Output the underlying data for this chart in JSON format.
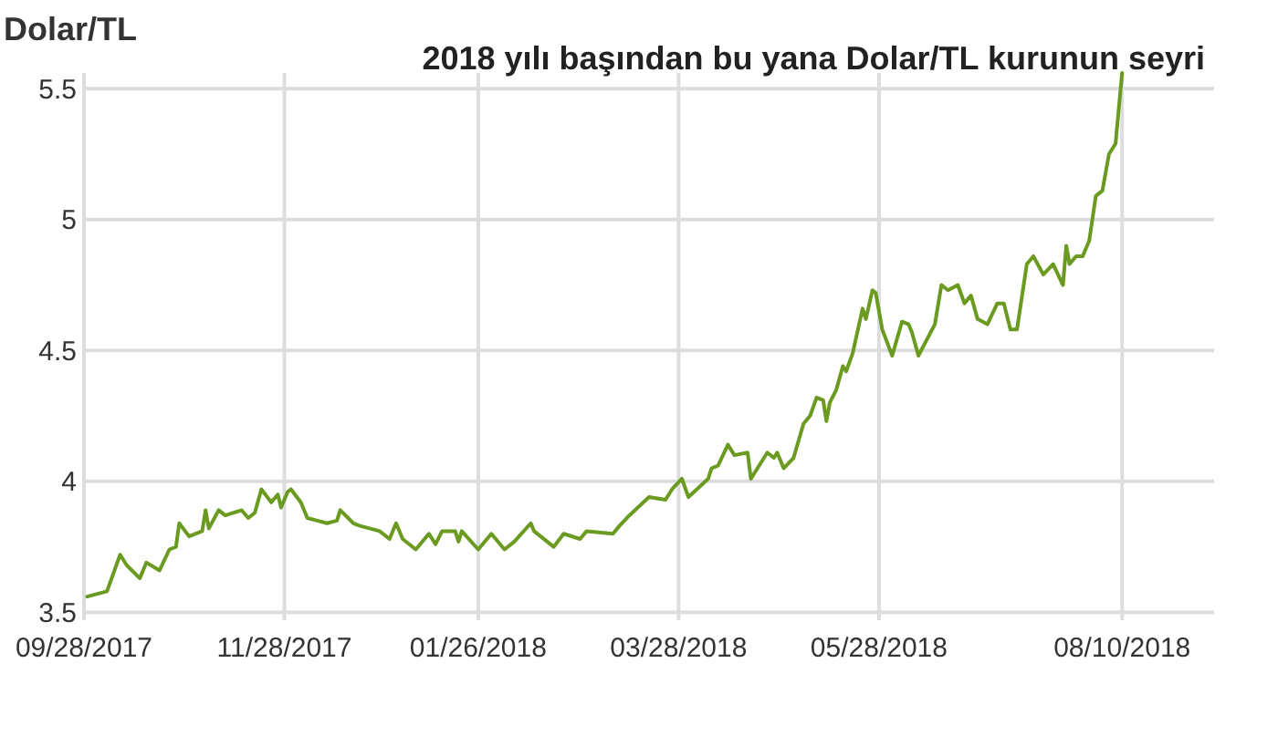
{
  "chart_data": {
    "type": "line",
    "title": "2018 yılı başından bu yana Dolar/TL kurunun seyri",
    "ylabel": "Dolar/TL",
    "xlim": [
      "2017-09-28",
      "2018-09-07"
    ],
    "ylim": [
      3.47,
      5.56
    ],
    "xticks": [
      {
        "value": "2017-09-28",
        "label": "09/28/2017"
      },
      {
        "value": "2017-11-28",
        "label": "11/28/2017"
      },
      {
        "value": "2018-01-26",
        "label": "01/26/2018"
      },
      {
        "value": "2018-03-28",
        "label": "03/28/2018"
      },
      {
        "value": "2018-05-28",
        "label": "05/28/2018"
      },
      {
        "value": "2018-08-10",
        "label": "08/10/2018"
      }
    ],
    "yticks": [
      3.5,
      4,
      4.5,
      5,
      5.5
    ],
    "grid": true,
    "marker": "none",
    "line_style": "solid",
    "series": [
      {
        "color": "#6a9a1f",
        "x": [
          "2017-09-29",
          "2017-10-05",
          "2017-10-09",
          "2017-10-11",
          "2017-10-15",
          "2017-10-17",
          "2017-10-21",
          "2017-10-24",
          "2017-10-26",
          "2017-10-27",
          "2017-10-30",
          "2017-11-03",
          "2017-11-04",
          "2017-11-05",
          "2017-11-08",
          "2017-11-10",
          "2017-11-15",
          "2017-11-17",
          "2017-11-19",
          "2017-11-21",
          "2017-11-24",
          "2017-11-26",
          "2017-11-27",
          "2017-11-29",
          "2017-11-30",
          "2017-12-03",
          "2017-12-05",
          "2017-12-08",
          "2017-12-11",
          "2017-12-14",
          "2017-12-15",
          "2017-12-19",
          "2017-12-21",
          "2017-12-27",
          "2017-12-30",
          "2018-01-01",
          "2018-01-03",
          "2018-01-07",
          "2018-01-11",
          "2018-01-13",
          "2018-01-15",
          "2018-01-19",
          "2018-01-20",
          "2018-01-21",
          "2018-01-26",
          "2018-01-30",
          "2018-02-03",
          "2018-02-06",
          "2018-02-11",
          "2018-02-12",
          "2018-02-18",
          "2018-02-21",
          "2018-02-26",
          "2018-02-28",
          "2018-03-08",
          "2018-03-10",
          "2018-03-13",
          "2018-03-19",
          "2018-03-24",
          "2018-03-26",
          "2018-03-29",
          "2018-03-31",
          "2018-04-06",
          "2018-04-07",
          "2018-04-09",
          "2018-04-12",
          "2018-04-14",
          "2018-04-18",
          "2018-04-19",
          "2018-04-24",
          "2018-04-26",
          "2018-04-27",
          "2018-04-29",
          "2018-05-02",
          "2018-05-05",
          "2018-05-07",
          "2018-05-09",
          "2018-05-11",
          "2018-05-12",
          "2018-05-13",
          "2018-05-15",
          "2018-05-17",
          "2018-05-18",
          "2018-05-20",
          "2018-05-23",
          "2018-05-24",
          "2018-05-26",
          "2018-05-27",
          "2018-05-29",
          "2018-06-01",
          "2018-06-04",
          "2018-06-06",
          "2018-06-07",
          "2018-06-09",
          "2018-06-14",
          "2018-06-16",
          "2018-06-18",
          "2018-06-21",
          "2018-06-23",
          "2018-06-25",
          "2018-06-27",
          "2018-06-30",
          "2018-07-03",
          "2018-07-05",
          "2018-07-07",
          "2018-07-09",
          "2018-07-12",
          "2018-07-14",
          "2018-07-17",
          "2018-07-20",
          "2018-07-23",
          "2018-07-24",
          "2018-07-25",
          "2018-07-27",
          "2018-07-29",
          "2018-07-31",
          "2018-08-02",
          "2018-08-04",
          "2018-08-06",
          "2018-08-08",
          "2018-08-10"
        ],
        "values": [
          3.56,
          3.58,
          3.72,
          3.68,
          3.63,
          3.69,
          3.66,
          3.74,
          3.75,
          3.84,
          3.79,
          3.81,
          3.89,
          3.82,
          3.89,
          3.87,
          3.89,
          3.86,
          3.88,
          3.97,
          3.92,
          3.95,
          3.9,
          3.96,
          3.97,
          3.92,
          3.86,
          3.85,
          3.84,
          3.85,
          3.89,
          3.84,
          3.83,
          3.81,
          3.78,
          3.84,
          3.78,
          3.74,
          3.8,
          3.76,
          3.81,
          3.81,
          3.77,
          3.81,
          3.74,
          3.8,
          3.74,
          3.77,
          3.84,
          3.81,
          3.75,
          3.8,
          3.78,
          3.81,
          3.8,
          3.83,
          3.87,
          3.94,
          3.93,
          3.97,
          4.01,
          3.94,
          4.01,
          4.05,
          4.06,
          4.14,
          4.1,
          4.11,
          4.01,
          4.11,
          4.09,
          4.11,
          4.05,
          4.09,
          4.22,
          4.25,
          4.32,
          4.31,
          4.23,
          4.3,
          4.35,
          4.44,
          4.42,
          4.49,
          4.66,
          4.62,
          4.73,
          4.72,
          4.58,
          4.48,
          4.61,
          4.6,
          4.57,
          4.48,
          4.6,
          4.75,
          4.73,
          4.75,
          4.68,
          4.71,
          4.62,
          4.6,
          4.68,
          4.68,
          4.58,
          4.58,
          4.83,
          4.86,
          4.79,
          4.83,
          4.75,
          4.9,
          4.83,
          4.86,
          4.86,
          4.92,
          5.09,
          5.11,
          5.25,
          5.29,
          5.56
        ]
      }
    ]
  }
}
